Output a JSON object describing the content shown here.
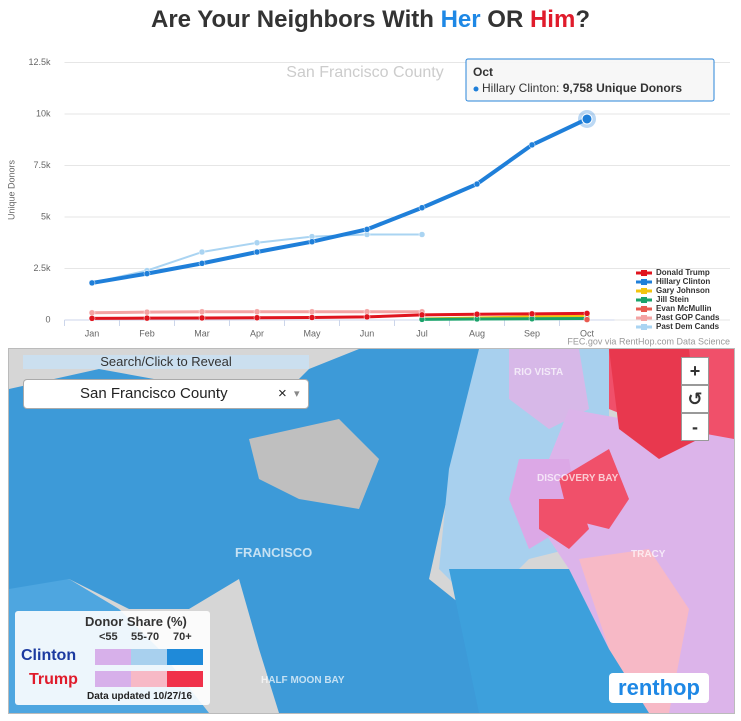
{
  "header": {
    "title_parts": [
      "Are Your Neighbors With ",
      "Her",
      " OR ",
      "Him",
      "?"
    ]
  },
  "chart_data": {
    "type": "line",
    "subtitle": "San Francisco County",
    "y_label": "Unique Donors",
    "categories": [
      "Jan",
      "Feb",
      "Mar",
      "Apr",
      "May",
      "Jun",
      "Jul",
      "Aug",
      "Sep",
      "Oct"
    ],
    "ylim": [
      0,
      12500
    ],
    "yticks": [
      0,
      {
        "value": 2500,
        "label": "2.5k"
      },
      {
        "value": 5000,
        "label": "5k"
      },
      {
        "value": 7500,
        "label": "7.5k"
      },
      {
        "value": 10000,
        "label": "10k"
      },
      {
        "value": 12500,
        "label": "12.5k"
      }
    ],
    "grid": true,
    "series": [
      {
        "name": "Donald Trump",
        "color": "#e0141e",
        "values": [
          80,
          90,
          100,
          110,
          120,
          150,
          250,
          280,
          300,
          320
        ]
      },
      {
        "name": "Hillary Clinton",
        "color": "#1f7fd9",
        "values": [
          1800,
          2250,
          2750,
          3300,
          3800,
          4400,
          5450,
          6600,
          8500,
          9758
        ]
      },
      {
        "name": "Gary Johnson",
        "color": "#f2c40f",
        "values": [
          null,
          null,
          null,
          null,
          null,
          null,
          50,
          100,
          150,
          180
        ]
      },
      {
        "name": "Jill Stein",
        "color": "#1aa36b",
        "values": [
          null,
          null,
          null,
          null,
          null,
          null,
          30,
          50,
          60,
          70
        ]
      },
      {
        "name": "Evan McMullin",
        "color": "#e85a4f",
        "values": [
          null,
          null,
          null,
          null,
          null,
          null,
          null,
          null,
          null,
          20
        ]
      },
      {
        "name": "Past GOP Cands",
        "color": "#f4a3a3",
        "values": [
          350,
          380,
          400,
          400,
          400,
          400,
          400,
          null,
          null,
          null
        ]
      },
      {
        "name": "Past Dem Cands",
        "color": "#aad4f2",
        "values": [
          1800,
          2400,
          3300,
          3750,
          4050,
          4150,
          4150,
          null,
          null,
          null
        ]
      }
    ],
    "tooltip": {
      "header": "Oct",
      "text": "Hillary Clinton: ",
      "value": "9,758 Unique Donors"
    },
    "credit": "FEC.gov via RentHop.com Data Science"
  },
  "map": {
    "search": "Search/Click to Reveal",
    "selected": "San Francisco County",
    "clear": "×",
    "arrow": "▾",
    "zoom": [
      "+",
      "↺",
      "-"
    ],
    "labels": [
      "FRANCISCO",
      "RIO VISTA",
      "DISCOVERY BAY",
      "TRACY",
      "HALF MOON BAY"
    ],
    "legend": {
      "title": "Donor Share (%)",
      "bins": [
        "<55",
        "55-70",
        "70+"
      ],
      "rows": [
        "Clinton",
        "Trump"
      ],
      "updated": "Data updated 10/27/16"
    },
    "logo": "renthop"
  }
}
